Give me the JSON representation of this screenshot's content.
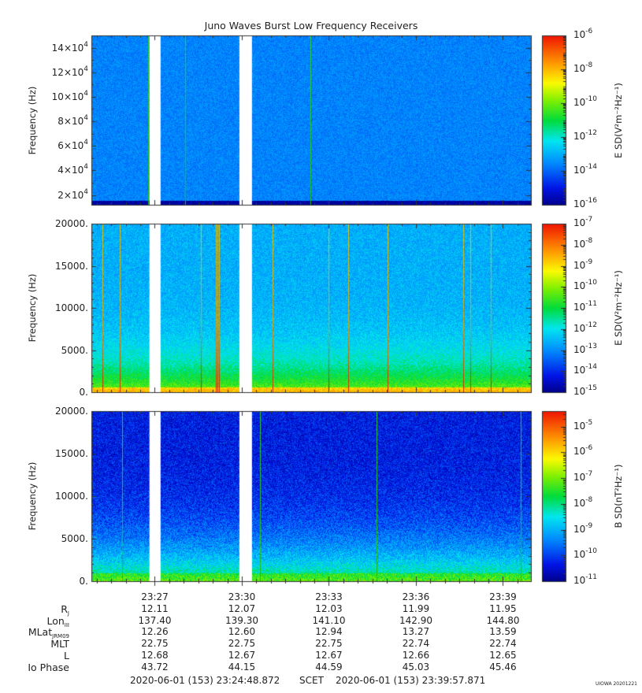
{
  "title": "Juno Waves Burst Low Frequency Receivers",
  "chart_data": [
    {
      "type": "heatmap",
      "ylabel": "Frequency (Hz)",
      "colorbar_label": "E SD(V²m⁻²Hz⁻¹)",
      "y_ticks": [
        {
          "base": "2",
          "exp": "4"
        },
        {
          "base": "4",
          "exp": "4"
        },
        {
          "base": "6",
          "exp": "4"
        },
        {
          "base": "8",
          "exp": "4"
        },
        {
          "base": "10",
          "exp": "4"
        },
        {
          "base": "12",
          "exp": "4"
        },
        {
          "base": "14",
          "exp": "4"
        }
      ],
      "ylim": [
        12000,
        150000
      ],
      "clim_exp": [
        -16,
        -6
      ],
      "cb_ticks": [
        "-6",
        "-8",
        "-10",
        "-12",
        "-14",
        "-16"
      ],
      "background_level": -13.6,
      "data_gaps": [
        [
          "23:26:49",
          "23:27:12"
        ],
        [
          "23:29:55",
          "23:30:21"
        ]
      ],
      "spikes": [
        "23:26:46",
        "23:28:02",
        "23:32:22"
      ]
    },
    {
      "type": "heatmap",
      "ylabel": "Frequency (Hz)",
      "colorbar_label": "E SD(V²m⁻²Hz⁻¹)",
      "y_ticks": [
        "0.",
        "5000.",
        "10000.",
        "15000.",
        "20000."
      ],
      "ylim": [
        0,
        20000
      ],
      "clim_exp": [
        -15,
        -7
      ],
      "cb_ticks": [
        "-7",
        "-8",
        "-9",
        "-10",
        "-11",
        "-12",
        "-13",
        "-14",
        "-15"
      ],
      "background_level": -12.6,
      "data_gaps": [
        [
          "23:26:49",
          "23:27:12"
        ],
        [
          "23:29:55",
          "23:30:21"
        ]
      ],
      "spikes": [
        "23:25:11",
        "23:25:48",
        "23:26:52",
        "23:28:36",
        "23:29:06",
        "23:29:09",
        "23:29:12",
        "23:31:04",
        "23:33:00",
        "23:33:40",
        "23:35:02",
        "23:37:38",
        "23:37:53",
        "23:38:34"
      ]
    },
    {
      "type": "heatmap",
      "ylabel": "Frequency (Hz)",
      "colorbar_label": "B SD(nT²Hz⁻¹)",
      "y_ticks": [
        "0.",
        "5000.",
        "10000.",
        "15000.",
        "20000."
      ],
      "ylim": [
        0,
        20000
      ],
      "clim_exp": [
        -11,
        -4.4
      ],
      "cb_ticks": [
        "-5",
        "-6",
        "-7",
        "-8",
        "-9",
        "-10",
        "-11"
      ],
      "background_level": -10.3,
      "data_gaps": [
        [
          "23:26:49",
          "23:27:12"
        ],
        [
          "23:29:55",
          "23:30:21"
        ]
      ],
      "spikes": [
        "23:25:52",
        "23:30:37",
        "23:34:38",
        "23:39:37"
      ]
    }
  ],
  "x_axis": {
    "start": "23:24:48.872",
    "end": "23:39:57.871",
    "tick_labels": [
      "23:27",
      "23:30",
      "23:33",
      "23:36",
      "23:39"
    ]
  },
  "ephemeris": {
    "labels": [
      "R",
      "Lon",
      "MLat",
      "MLT",
      "L",
      "Io Phase"
    ],
    "label_subs": [
      "J",
      "III",
      "JRM09",
      "",
      "",
      ""
    ],
    "rows": [
      [
        "12.11",
        "12.07",
        "12.03",
        "11.99",
        "11.95"
      ],
      [
        "137.40",
        "139.30",
        "141.10",
        "142.90",
        "144.80"
      ],
      [
        "12.26",
        "12.60",
        "12.94",
        "13.27",
        "13.59"
      ],
      [
        "22.75",
        "22.75",
        "22.75",
        "22.74",
        "22.74"
      ],
      [
        "12.68",
        "12.67",
        "12.67",
        "12.66",
        "12.65"
      ],
      [
        "43.72",
        "44.15",
        "44.59",
        "45.03",
        "45.46"
      ]
    ]
  },
  "footer": {
    "start": "2020-06-01 (153) 23:24:48.872",
    "scet": "SCET",
    "end": "2020-06-01 (153) 23:39:57.871"
  },
  "stamp": "UIOWA 20201221"
}
